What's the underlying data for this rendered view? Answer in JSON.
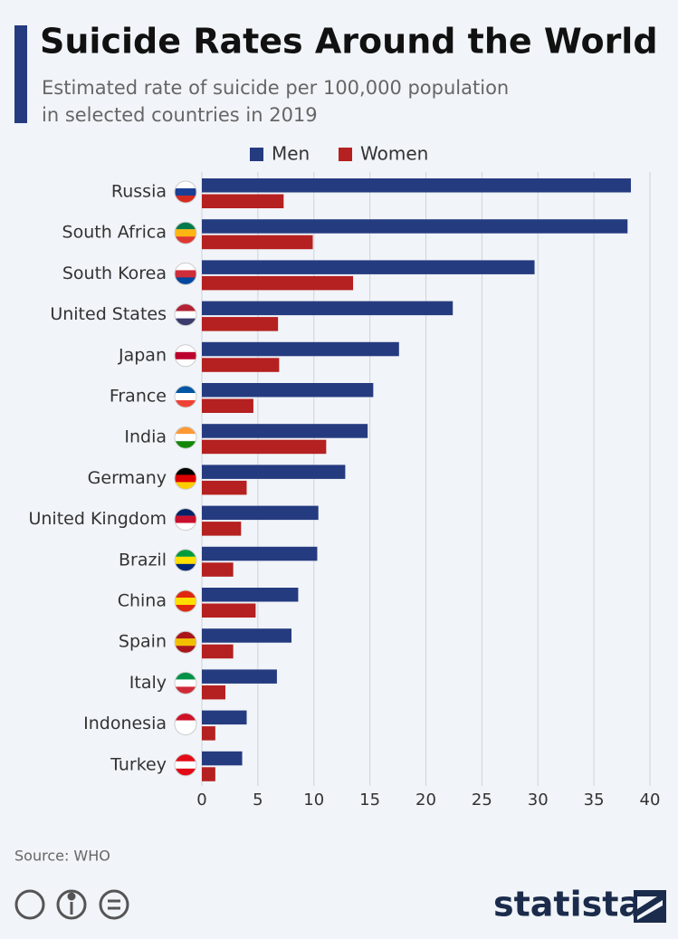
{
  "chart_data": {
    "type": "hbar",
    "title": "Suicide Rates Around the World",
    "subtitle": [
      "Estimated rate of suicide per 100,000 population",
      "in selected countries in 2019"
    ],
    "categories": [
      "Russia",
      "South Africa",
      "South Korea",
      "United States",
      "Japan",
      "France",
      "India",
      "Germany",
      "United Kingdom",
      "Brazil",
      "China",
      "Spain",
      "Italy",
      "Indonesia",
      "Turkey"
    ],
    "series": [
      {
        "name": "Men",
        "color": "#253b80",
        "values": [
          38.3,
          38.0,
          29.7,
          22.4,
          17.6,
          15.3,
          14.8,
          12.8,
          10.4,
          10.3,
          8.6,
          8.0,
          6.7,
          4.0,
          3.6
        ]
      },
      {
        "name": "Women",
        "color": "#b52020",
        "values": [
          7.3,
          9.9,
          13.5,
          6.8,
          6.9,
          4.6,
          11.1,
          4.0,
          3.5,
          2.8,
          4.8,
          2.8,
          2.1,
          1.2,
          1.2
        ]
      }
    ],
    "xlim": [
      0,
      40
    ],
    "xticks": [
      0,
      5,
      10,
      15,
      20,
      25,
      30,
      35,
      40
    ],
    "grid": true,
    "legend": "top",
    "source": "Source: WHO",
    "logo": "statista"
  }
}
